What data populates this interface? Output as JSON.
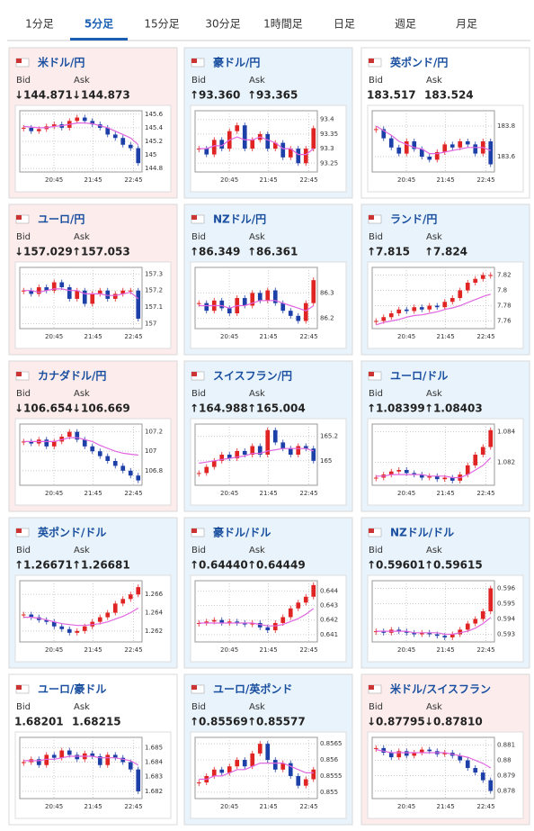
{
  "tabs": {
    "items": [
      "1分足",
      "5分足",
      "15分足",
      "30分足",
      "1時間足",
      "日足",
      "週足",
      "月足"
    ],
    "selected": 1
  },
  "labels": {
    "bid": "Bid",
    "ask": "Ask"
  },
  "times": [
    "20:45",
    "21:45",
    "22:45"
  ],
  "cards": [
    {
      "pair": "米ドル/円",
      "trend": "down",
      "bid": "↓144.871",
      "ask": "↓144.873",
      "ylim": [
        144.75,
        145.65
      ],
      "yticks": [
        144.8,
        145,
        145.2,
        145.4,
        145.6
      ],
      "closes": [
        145.4,
        145.35,
        145.38,
        145.42,
        145.45,
        145.4,
        145.5,
        145.55,
        145.5,
        145.45,
        145.4,
        145.3,
        145.25,
        145.15,
        145.1,
        144.88
      ],
      "ma": [
        145.42,
        145.41,
        145.4,
        145.4,
        145.42,
        145.43,
        145.45,
        145.47,
        145.47,
        145.46,
        145.43,
        145.4,
        145.35,
        145.3,
        145.25,
        145.15
      ]
    },
    {
      "pair": "豪ドル/円",
      "trend": "up",
      "bid": "↑93.360",
      "ask": "↑93.365",
      "ylim": [
        93.22,
        93.43
      ],
      "yticks": [
        93.25,
        93.3,
        93.35,
        93.4
      ],
      "closes": [
        93.3,
        93.28,
        93.33,
        93.3,
        93.36,
        93.38,
        93.3,
        93.33,
        93.35,
        93.3,
        93.32,
        93.27,
        93.3,
        93.25,
        93.3,
        93.37
      ],
      "ma": [
        93.3,
        93.3,
        93.31,
        93.31,
        93.33,
        93.34,
        93.33,
        93.33,
        93.34,
        93.33,
        93.32,
        93.3,
        93.3,
        93.28,
        93.28,
        93.3
      ]
    },
    {
      "pair": "英ポンド/円",
      "trend": "flat",
      "bid": "183.517",
      "ask": "183.524",
      "ylim": [
        183.5,
        183.9
      ],
      "yticks": [
        183.6,
        183.8
      ],
      "closes": [
        183.78,
        183.72,
        183.66,
        183.62,
        183.7,
        183.65,
        183.6,
        183.58,
        183.63,
        183.68,
        183.66,
        183.7,
        183.68,
        183.62,
        183.7,
        183.55
      ],
      "ma": [
        183.8,
        183.77,
        183.74,
        183.7,
        183.68,
        183.66,
        183.65,
        183.62,
        183.62,
        183.63,
        183.64,
        183.65,
        183.66,
        183.66,
        183.66,
        183.64
      ]
    },
    {
      "pair": "ユーロ/円",
      "trend": "down",
      "bid": "↓157.029",
      "ask": "↑157.053",
      "ylim": [
        156.97,
        157.34
      ],
      "yticks": [
        157,
        157.1,
        157.2,
        157.3
      ],
      "closes": [
        157.2,
        157.18,
        157.22,
        157.2,
        157.25,
        157.22,
        157.15,
        157.2,
        157.12,
        157.18,
        157.2,
        157.15,
        157.18,
        157.2,
        157.2,
        157.03
      ],
      "ma": [
        157.2,
        157.2,
        157.19,
        157.2,
        157.21,
        157.21,
        157.2,
        157.2,
        157.18,
        157.18,
        157.18,
        157.17,
        157.17,
        157.18,
        157.19,
        157.15
      ]
    },
    {
      "pair": "NZドル/円",
      "trend": "up",
      "bid": "↑86.349",
      "ask": "↑86.361",
      "ylim": [
        86.16,
        86.4
      ],
      "yticks": [
        86.2,
        86.3
      ],
      "closes": [
        86.26,
        86.23,
        86.27,
        86.24,
        86.22,
        86.28,
        86.25,
        86.3,
        86.27,
        86.31,
        86.26,
        86.23,
        86.21,
        86.19,
        86.26,
        86.35
      ],
      "ma": [
        86.25,
        86.25,
        86.25,
        86.25,
        86.24,
        86.25,
        86.25,
        86.26,
        86.27,
        86.27,
        86.27,
        86.26,
        86.25,
        86.24,
        86.23,
        86.25
      ]
    },
    {
      "pair": "ランド/円",
      "trend": "up",
      "bid": "↑7.815",
      "ask": "↑7.824",
      "ylim": [
        7.75,
        7.83
      ],
      "yticks": [
        7.76,
        7.78,
        7.8,
        7.82
      ],
      "closes": [
        7.76,
        7.765,
        7.77,
        7.775,
        7.773,
        7.778,
        7.775,
        7.78,
        7.778,
        7.785,
        7.79,
        7.8,
        7.81,
        7.815,
        7.82,
        7.82
      ],
      "ma": [
        7.755,
        7.758,
        7.76,
        7.762,
        7.765,
        7.767,
        7.768,
        7.77,
        7.772,
        7.775,
        7.777,
        7.78,
        7.784,
        7.788,
        7.792,
        7.795
      ]
    },
    {
      "pair": "カナダドル/円",
      "trend": "down",
      "bid": "↓106.654",
      "ask": "↓106.669",
      "ylim": [
        106.65,
        107.28
      ],
      "yticks": [
        106.8,
        107,
        107.2
      ],
      "closes": [
        107.1,
        107.08,
        107.12,
        107.05,
        107.1,
        107.15,
        107.2,
        107.12,
        107.05,
        107.0,
        106.95,
        106.9,
        106.85,
        106.8,
        106.75,
        106.7
      ],
      "ma": [
        107.1,
        107.1,
        107.1,
        107.1,
        107.1,
        107.12,
        107.14,
        107.14,
        107.12,
        107.1,
        107.06,
        107.03,
        107.0,
        106.98,
        106.97,
        106.96
      ]
    },
    {
      "pair": "スイスフラン/円",
      "trend": "up",
      "bid": "↑164.988",
      "ask": "↑165.004",
      "ylim": [
        164.8,
        165.3
      ],
      "yticks": [
        165,
        165.2
      ],
      "closes": [
        164.9,
        164.95,
        165.0,
        165.05,
        165.02,
        165.08,
        165.05,
        165.12,
        165.05,
        165.25,
        165.15,
        165.1,
        165.05,
        165.12,
        165.1,
        165.0
      ],
      "ma": [
        164.98,
        164.99,
        165.0,
        165.01,
        165.02,
        165.03,
        165.04,
        165.06,
        165.06,
        165.08,
        165.09,
        165.1,
        165.1,
        165.1,
        165.1,
        165.08
      ]
    },
    {
      "pair": "ユーロ/ドル",
      "trend": "up",
      "bid": "↑1.08399",
      "ask": "↑1.08403",
      "ylim": [
        1.0805,
        1.0845
      ],
      "yticks": [
        1.082,
        1.084
      ],
      "closes": [
        1.081,
        1.0812,
        1.0814,
        1.0815,
        1.0813,
        1.0812,
        1.081,
        1.0811,
        1.0809,
        1.081,
        1.0808,
        1.0812,
        1.0818,
        1.0825,
        1.083,
        1.0841
      ],
      "ma": [
        1.0811,
        1.0811,
        1.0812,
        1.0812,
        1.0812,
        1.0812,
        1.0812,
        1.0811,
        1.0811,
        1.0811,
        1.081,
        1.081,
        1.0812,
        1.0815,
        1.0818,
        1.0823
      ]
    },
    {
      "pair": "英ポンド/ドル",
      "trend": "up",
      "bid": "↑1.26671",
      "ask": "↑1.26681",
      "ylim": [
        1.2608,
        1.2675
      ],
      "yticks": [
        1.262,
        1.264,
        1.266
      ],
      "closes": [
        1.2638,
        1.2635,
        1.2632,
        1.263,
        1.2625,
        1.2622,
        1.2618,
        1.262,
        1.2625,
        1.263,
        1.2635,
        1.264,
        1.265,
        1.2655,
        1.266,
        1.2668
      ],
      "ma": [
        1.2635,
        1.2635,
        1.2634,
        1.2632,
        1.263,
        1.2628,
        1.2627,
        1.2626,
        1.2626,
        1.2627,
        1.2628,
        1.263,
        1.2633,
        1.2636,
        1.264,
        1.2645
      ]
    },
    {
      "pair": "豪ドル/ドル",
      "trend": "up",
      "bid": "↑0.64440",
      "ask": "↑0.64449",
      "ylim": [
        0.6405,
        0.6447
      ],
      "yticks": [
        0.641,
        0.642,
        0.643,
        0.644
      ],
      "closes": [
        0.6418,
        0.6419,
        0.642,
        0.6418,
        0.6419,
        0.6418,
        0.6417,
        0.6418,
        0.6415,
        0.6413,
        0.6418,
        0.6422,
        0.6428,
        0.6432,
        0.6436,
        0.6444
      ],
      "ma": [
        0.6418,
        0.6418,
        0.6418,
        0.6418,
        0.6418,
        0.6418,
        0.6418,
        0.6418,
        0.6417,
        0.6416,
        0.6416,
        0.6417,
        0.6419,
        0.6421,
        0.6424,
        0.6428
      ]
    },
    {
      "pair": "NZドル/ドル",
      "trend": "up",
      "bid": "↑0.59601",
      "ask": "↑0.59615",
      "ylim": [
        0.5925,
        0.5965
      ],
      "yticks": [
        0.593,
        0.594,
        0.595,
        0.596
      ],
      "closes": [
        0.5932,
        0.5931,
        0.5933,
        0.5932,
        0.5931,
        0.593,
        0.5931,
        0.593,
        0.5929,
        0.5928,
        0.593,
        0.5933,
        0.5937,
        0.594,
        0.5945,
        0.596
      ],
      "ma": [
        0.5932,
        0.5932,
        0.5932,
        0.5932,
        0.5932,
        0.5931,
        0.5931,
        0.5931,
        0.5931,
        0.593,
        0.593,
        0.5931,
        0.5932,
        0.5934,
        0.5937,
        0.5941
      ]
    },
    {
      "pair": "ユーロ/豪ドル",
      "trend": "flat",
      "bid": "1.68201",
      "ask": "1.68215",
      "ylim": [
        1.6815,
        1.6857
      ],
      "yticks": [
        1.682,
        1.683,
        1.684,
        1.685
      ],
      "closes": [
        1.684,
        1.6842,
        1.6838,
        1.6845,
        1.6843,
        1.6848,
        1.6845,
        1.6842,
        1.6846,
        1.6844,
        1.6838,
        1.6845,
        1.6843,
        1.684,
        1.6835,
        1.682
      ],
      "ma": [
        1.6841,
        1.6841,
        1.6841,
        1.6842,
        1.6842,
        1.6843,
        1.6844,
        1.6844,
        1.6844,
        1.6844,
        1.6843,
        1.6843,
        1.6843,
        1.6842,
        1.6841,
        1.6838
      ]
    },
    {
      "pair": "ユーロ/英ポンド",
      "trend": "up",
      "bid": "↑0.85569",
      "ask": "↑0.85577",
      "ylim": [
        0.8548,
        0.8567
      ],
      "yticks": [
        0.855,
        0.8555,
        0.856,
        0.8565
      ],
      "closes": [
        0.8553,
        0.8555,
        0.8557,
        0.8556,
        0.8558,
        0.856,
        0.8558,
        0.8562,
        0.8565,
        0.856,
        0.8557,
        0.8559,
        0.8555,
        0.8552,
        0.8554,
        0.8557
      ],
      "ma": [
        0.8554,
        0.8554,
        0.8555,
        0.8555,
        0.8556,
        0.8557,
        0.8557,
        0.8558,
        0.8559,
        0.8559,
        0.8559,
        0.8559,
        0.8558,
        0.8557,
        0.8556,
        0.8556
      ]
    },
    {
      "pair": "米ドル/スイスフラン",
      "trend": "down",
      "bid": "↓0.87795",
      "ask": "↓0.87810",
      "ylim": [
        0.8775,
        0.8815
      ],
      "yticks": [
        0.878,
        0.879,
        0.88,
        0.881
      ],
      "closes": [
        0.8808,
        0.8805,
        0.8802,
        0.8806,
        0.8803,
        0.8805,
        0.8807,
        0.8806,
        0.8804,
        0.8805,
        0.8803,
        0.88,
        0.8795,
        0.8792,
        0.8787,
        0.878
      ],
      "ma": [
        0.8807,
        0.8806,
        0.8805,
        0.8805,
        0.8805,
        0.8805,
        0.8805,
        0.8805,
        0.8805,
        0.8805,
        0.8804,
        0.8803,
        0.8802,
        0.88,
        0.8798,
        0.8795
      ]
    }
  ]
}
